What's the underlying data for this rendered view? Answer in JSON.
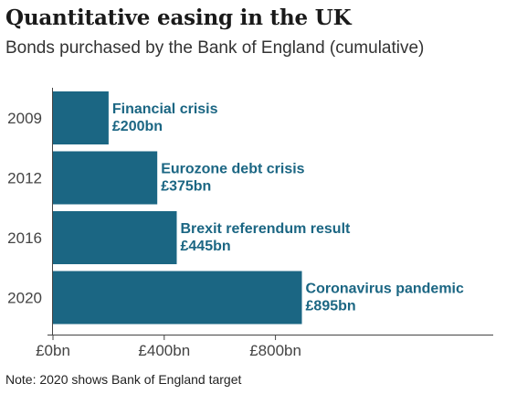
{
  "title": "Quantitative easing in the UK",
  "subtitle": "Bonds purchased by the Bank of England (cumulative)",
  "note": "Note: 2020 shows Bank of England target",
  "colors": {
    "bar": "#1b6683",
    "label": "#1b6683",
    "axis": "#444444",
    "text": "#222222"
  },
  "chart_data": {
    "type": "bar",
    "orientation": "horizontal",
    "categories": [
      "2009",
      "2012",
      "2016",
      "2020"
    ],
    "values": [
      200,
      375,
      445,
      895
    ],
    "unit": "£bn",
    "annotations": [
      {
        "category": "2009",
        "event": "Financial crisis",
        "value_label": "£200bn"
      },
      {
        "category": "2012",
        "event": "Eurozone debt crisis",
        "value_label": "£375bn"
      },
      {
        "category": "2016",
        "event": "Brexit referendum result",
        "value_label": "£445bn"
      },
      {
        "category": "2020",
        "event": "Coronavirus pandemic",
        "value_label": "£895bn"
      }
    ],
    "x_ticks": [
      {
        "value": 0,
        "label": "£0bn"
      },
      {
        "value": 400,
        "label": "£400bn"
      },
      {
        "value": 800,
        "label": "£800bn"
      }
    ],
    "xlim": [
      0,
      1600
    ],
    "xlabel": "",
    "ylabel": "",
    "grid": false,
    "legend": "none"
  }
}
